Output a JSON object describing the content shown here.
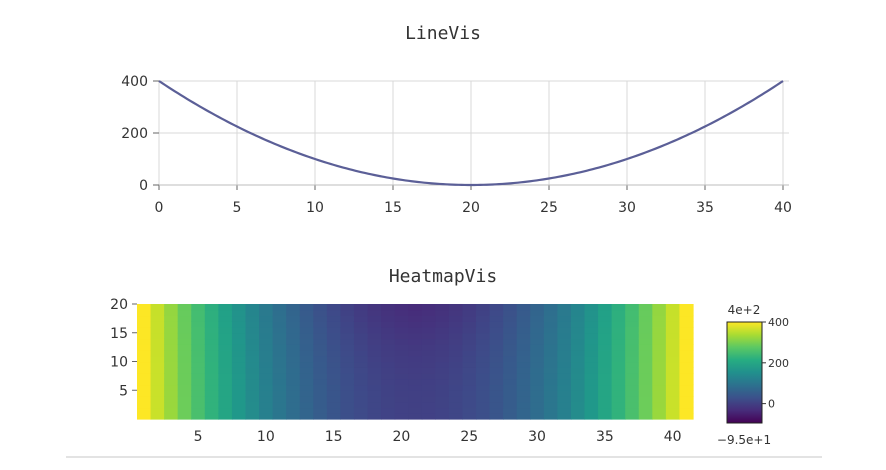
{
  "chart_data": [
    {
      "type": "line",
      "title": "LineVis",
      "xlabel": "",
      "ylabel": "",
      "xlim": [
        0,
        40
      ],
      "ylim": [
        0,
        400
      ],
      "xticks": [
        0,
        5,
        10,
        15,
        20,
        25,
        30,
        35,
        40
      ],
      "yticks": [
        0,
        200,
        400
      ],
      "grid": true,
      "function": "y = (x - 20)^2",
      "x": [
        0,
        2,
        4,
        6,
        8,
        10,
        12,
        14,
        16,
        18,
        20,
        22,
        24,
        26,
        28,
        30,
        32,
        34,
        36,
        38,
        40
      ],
      "y": [
        400,
        324,
        256,
        196,
        144,
        100,
        64,
        36,
        16,
        4,
        0,
        4,
        16,
        36,
        64,
        100,
        144,
        196,
        256,
        324,
        400
      ],
      "color": "#5b5f97"
    },
    {
      "type": "heatmap",
      "title": "HeatmapVis",
      "xlim": [
        0,
        41
      ],
      "ylim": [
        0,
        20
      ],
      "xticks": [
        5,
        10,
        15,
        20,
        25,
        30,
        35,
        40
      ],
      "yticks": [
        5,
        10,
        15,
        20
      ],
      "columns": [
        400,
        361,
        324,
        289,
        256,
        225,
        196,
        169,
        144,
        121,
        100,
        81,
        64,
        49,
        36,
        25,
        16,
        9,
        4,
        1,
        0,
        1,
        4,
        9,
        16,
        25,
        36,
        49,
        64,
        81,
        100,
        121,
        144,
        169,
        196,
        225,
        256,
        289,
        324,
        361,
        400
      ],
      "column_profile_note": "",
      "top_row_offset": -95,
      "colorscale": "viridis",
      "colorbar": {
        "min_label": "−9.5e+1",
        "max_label": "4e+2",
        "min": -95,
        "max": 400,
        "ticks": [
          0,
          200,
          400
        ]
      }
    }
  ]
}
